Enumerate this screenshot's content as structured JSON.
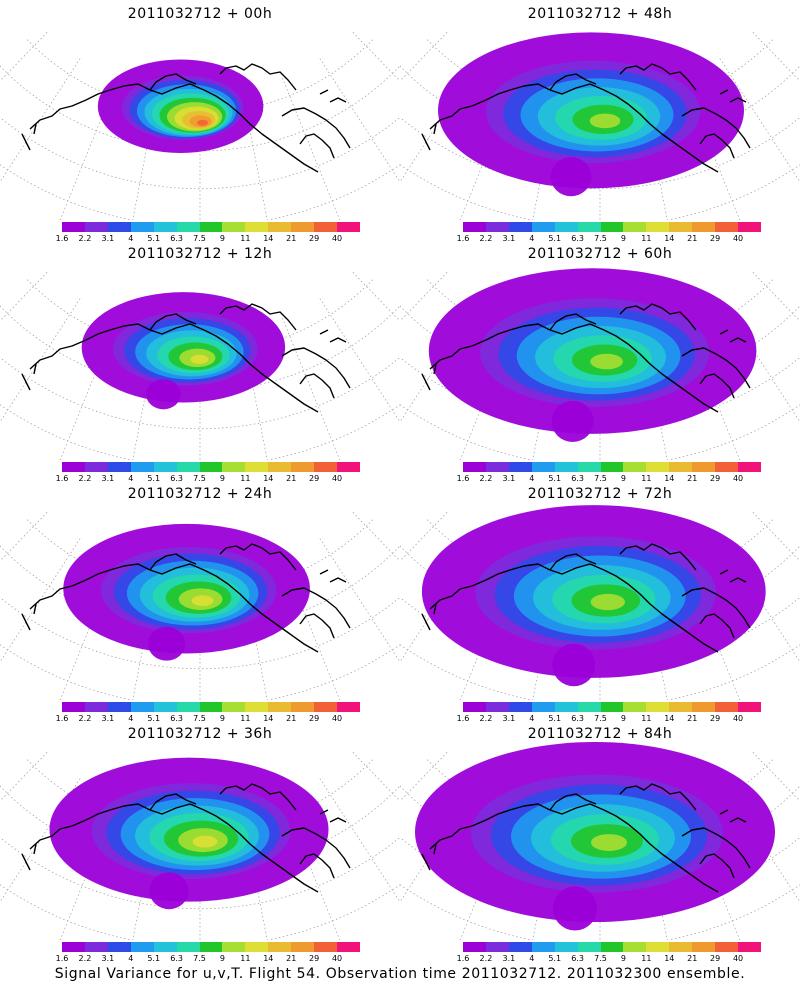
{
  "panels": [
    {
      "title": "2011032712 + 00h",
      "spread": 0.28,
      "peak": 0.95
    },
    {
      "title": "2011032712 + 48h",
      "spread": 0.8,
      "peak": 0.55
    },
    {
      "title": "2011032712 + 12h",
      "spread": 0.42,
      "peak": 0.72
    },
    {
      "title": "2011032712 + 60h",
      "spread": 0.88,
      "peak": 0.55
    },
    {
      "title": "2011032712 + 24h",
      "spread": 0.58,
      "peak": 0.65
    },
    {
      "title": "2011032712 + 72h",
      "spread": 0.94,
      "peak": 0.55
    },
    {
      "title": "2011032712 + 36h",
      "spread": 0.7,
      "peak": 0.62
    },
    {
      "title": "2011032712 + 84h",
      "spread": 1.0,
      "peak": 0.55
    }
  ],
  "colorbar": {
    "labels": [
      "1.6",
      "2.2",
      "3.1",
      "4",
      "5.1",
      "6.3",
      "7.5",
      "9",
      "11",
      "14",
      "21",
      "29",
      "40"
    ],
    "colors": [
      "#9b00d9",
      "#7b2bdc",
      "#2e4ae8",
      "#1f9bf0",
      "#22c3d8",
      "#25d9a8",
      "#22c52a",
      "#a7de32",
      "#dede34",
      "#e9bb32",
      "#ef9a2e",
      "#f2603a",
      "#f0147a"
    ]
  },
  "footer": "Signal Variance for u,v,T. Flight 54. Observation time 2011032712. 2011032300 ensemble."
}
